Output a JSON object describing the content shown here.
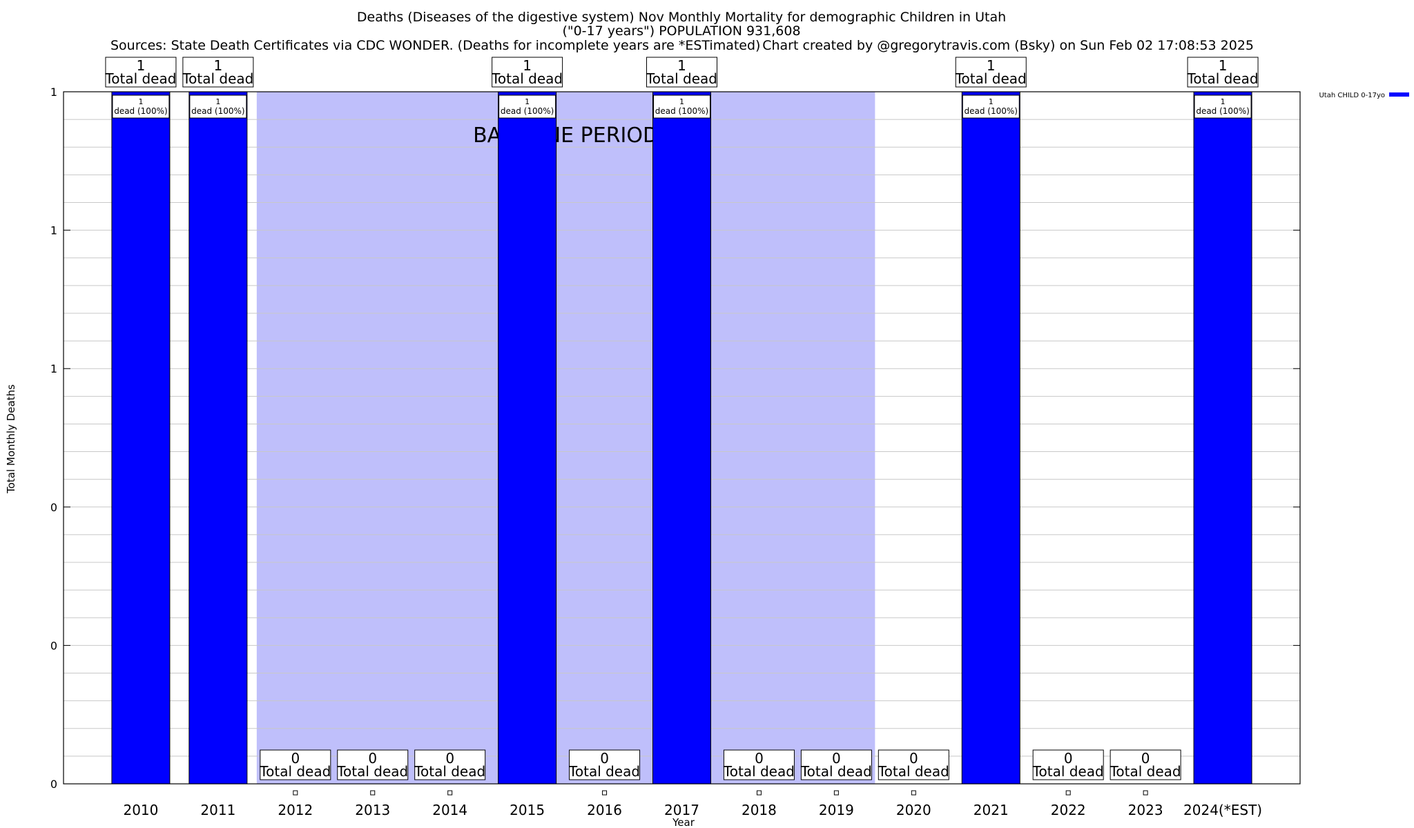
{
  "header": {
    "title_line1": "Deaths (Diseases of the digestive system) Nov Monthly Mortality for demographic Children in Utah",
    "title_line2": "(\"0-17 years\") POPULATION 931,608",
    "sources": "Sources: State Death Certificates via CDC WONDER. (Deaths for incomplete years are *ESTimated)",
    "credit": "Chart created by @gregorytravis.com (Bsky) on Sun Feb 02 17:08:53 2025"
  },
  "chart_data": {
    "type": "bar",
    "title": "Deaths (Diseases of the digestive system) Nov Monthly Mortality for demographic Children in Utah",
    "xlabel": "Year",
    "ylabel": "Total Monthly Deaths",
    "categories": [
      "2010",
      "2011",
      "2012",
      "2013",
      "2014",
      "2015",
      "2016",
      "2017",
      "2018",
      "2019",
      "2020",
      "2021",
      "2022",
      "2023",
      "2024(*EST)"
    ],
    "series": [
      {
        "name": "Utah CHILD 0-17yo",
        "color": "#0000ff",
        "values": [
          1,
          1,
          0,
          0,
          0,
          1,
          0,
          1,
          0,
          0,
          0,
          1,
          0,
          0,
          1
        ]
      }
    ],
    "ylim": [
      0,
      1
    ],
    "ytick_labels": [
      "0",
      "0",
      "0",
      "1",
      "1",
      "1"
    ],
    "total_label_suffix": "Total dead",
    "bar_label_suffix": "dead (100%)",
    "baseline": {
      "label": "BASELINE PERIOD",
      "from": "2012",
      "to": "2019",
      "color": "#bfbffb"
    },
    "legend_position": "top-right",
    "grid": true
  }
}
